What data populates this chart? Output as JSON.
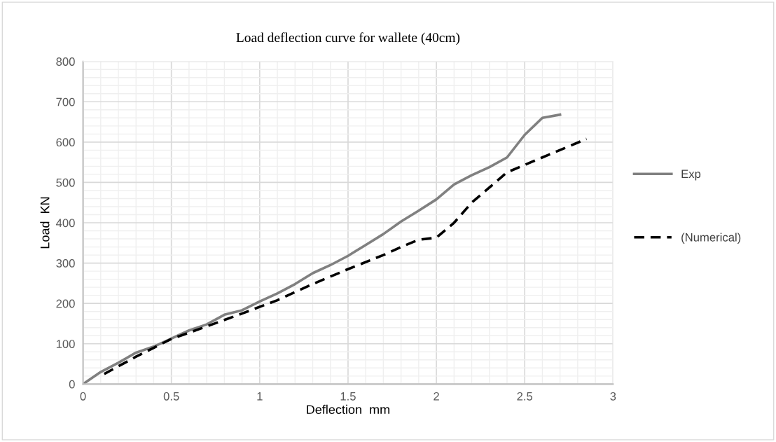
{
  "chart_data": {
    "type": "line",
    "title": "Load deflection curve for wallete (40cm)",
    "xlabel": "Deflection  mm",
    "ylabel": "Load  KN",
    "series": [
      {
        "name": "Exp",
        "color": "#808080",
        "line_style": "solid",
        "x": [
          0,
          0.1,
          0.2,
          0.3,
          0.4,
          0.5,
          0.6,
          0.7,
          0.8,
          0.9,
          1.0,
          1.1,
          1.2,
          1.3,
          1.4,
          1.5,
          1.6,
          1.7,
          1.8,
          1.9,
          2.0,
          2.1,
          2.2,
          2.3,
          2.4,
          2.5,
          2.6,
          2.7
        ],
        "values": [
          0,
          30,
          53,
          78,
          93,
          113,
          133,
          148,
          172,
          183,
          205,
          225,
          248,
          275,
          295,
          318,
          345,
          372,
          403,
          430,
          458,
          495,
          518,
          538,
          562,
          618,
          660,
          668
        ]
      },
      {
        "name": "(Numerical)",
        "color": "#000000",
        "line_style": "dashed",
        "x": [
          0.12,
          0.3,
          0.5,
          0.7,
          0.9,
          1.1,
          1.3,
          1.5,
          1.7,
          1.8,
          1.9,
          2.0,
          2.1,
          2.2,
          2.4,
          2.6,
          2.85
        ],
        "values": [
          25,
          68,
          112,
          143,
          175,
          208,
          248,
          285,
          320,
          340,
          358,
          363,
          400,
          450,
          525,
          562,
          608
        ]
      }
    ],
    "xlim": [
      0,
      3
    ],
    "xticks": [
      0,
      0.5,
      1,
      1.5,
      2,
      2.5,
      3
    ],
    "ylim": [
      0,
      800
    ],
    "yticks": [
      0,
      100,
      200,
      300,
      400,
      500,
      600,
      700,
      800
    ],
    "grid": true,
    "legend": "right",
    "marker": "none"
  }
}
